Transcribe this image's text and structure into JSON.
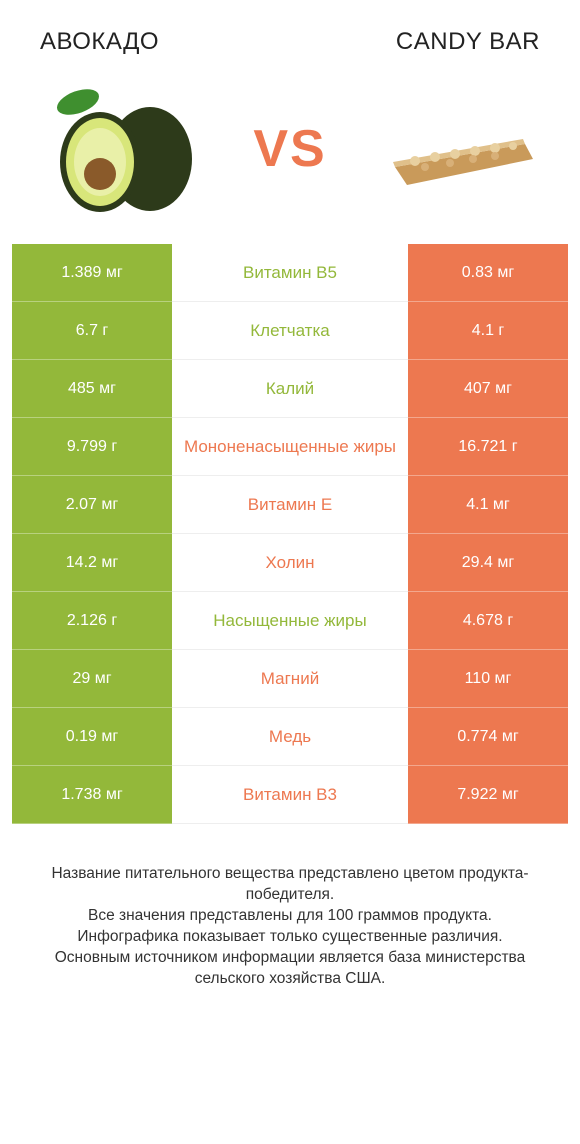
{
  "header": {
    "left_title": "АВОКАДО",
    "right_title": "CANDY BAR",
    "vs_label": "VS"
  },
  "colors": {
    "left_bar": "#93b83a",
    "right_bar": "#ed7850",
    "vs_text": "#ed7850",
    "background": "#ffffff",
    "footer_text": "#333333"
  },
  "typography": {
    "header_fontsize": 24,
    "vs_fontsize": 52,
    "row_value_fontsize": 16,
    "row_label_fontsize": 17,
    "footer_fontsize": 15.5
  },
  "comparison": {
    "type": "table",
    "rows": [
      {
        "left": "1.389 мг",
        "label": "Витамин B5",
        "right": "0.83 мг",
        "winner": "left"
      },
      {
        "left": "6.7 г",
        "label": "Клетчатка",
        "right": "4.1 г",
        "winner": "left"
      },
      {
        "left": "485 мг",
        "label": "Калий",
        "right": "407 мг",
        "winner": "left"
      },
      {
        "left": "9.799 г",
        "label": "Мононенасыщенные жиры",
        "right": "16.721 г",
        "winner": "right"
      },
      {
        "left": "2.07 мг",
        "label": "Витамин E",
        "right": "4.1 мг",
        "winner": "right"
      },
      {
        "left": "14.2 мг",
        "label": "Холин",
        "right": "29.4 мг",
        "winner": "right"
      },
      {
        "left": "2.126 г",
        "label": "Насыщенные жиры",
        "right": "4.678 г",
        "winner": "left"
      },
      {
        "left": "29 мг",
        "label": "Магний",
        "right": "110 мг",
        "winner": "right"
      },
      {
        "left": "0.19 мг",
        "label": "Медь",
        "right": "0.774 мг",
        "winner": "right"
      },
      {
        "left": "1.738 мг",
        "label": "Витамин B3",
        "right": "7.922 мг",
        "winner": "right"
      }
    ]
  },
  "footer": {
    "lines": [
      "Название питательного вещества представлено цветом продукта-победителя.",
      "Все значения представлены для 100 граммов продукта.",
      "Инфографика показывает только существенные различия.",
      "Основным источником информации является база министерства сельского хозяйства США."
    ]
  }
}
